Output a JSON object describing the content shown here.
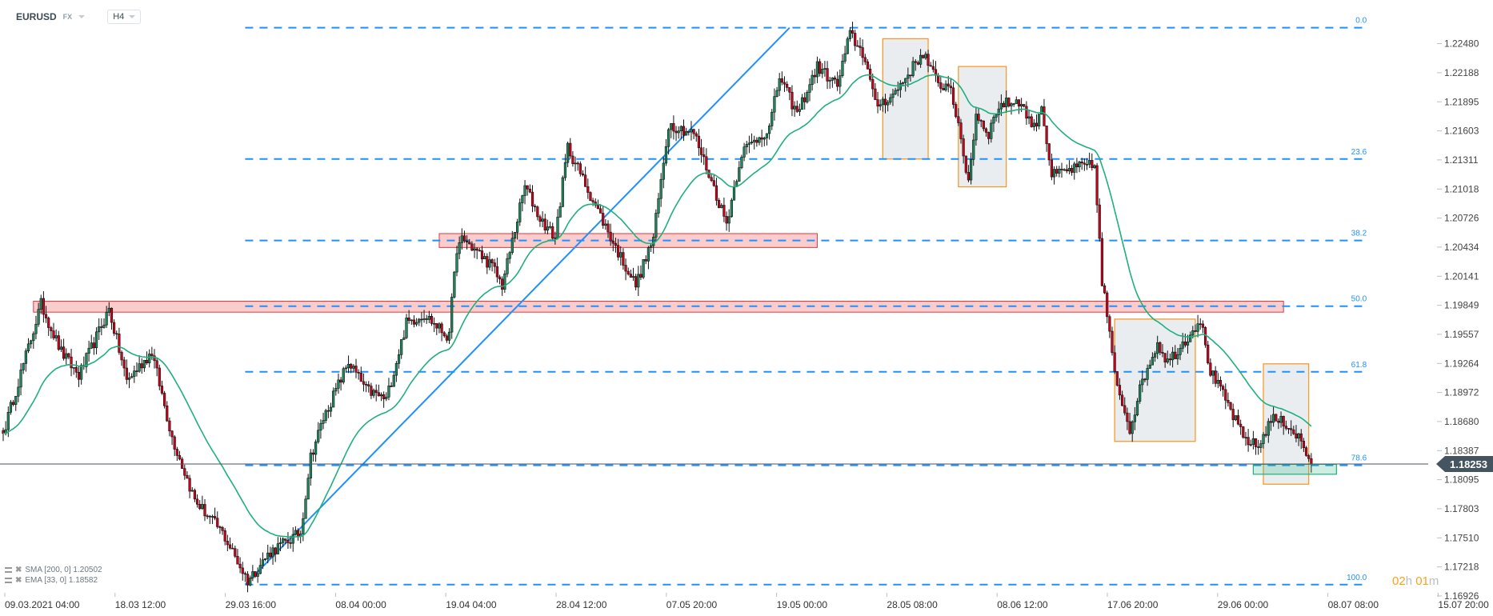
{
  "header": {
    "symbol": "EURUSD",
    "market": "FX",
    "timeframe": "H4"
  },
  "indicators": [
    {
      "label": "SMA [200,  0] 1.20502"
    },
    {
      "label": "EMA [33,  0] 1.18582"
    }
  ],
  "timer": {
    "hours": "02",
    "h": "h",
    "minutes": "01",
    "m": "m"
  },
  "colors": {
    "up": "#1b8a5e",
    "down": "#d0021b",
    "ema": "#1fb07c",
    "fib": "#1e90ff",
    "trendline": "#1e90ff",
    "zone_red": "#f5a3a3",
    "box_orange": "#f7941d",
    "zone_green": "#1fb07c",
    "last_price_bg": "#455560"
  },
  "chart_data": {
    "type": "candlestick",
    "title": "",
    "ylim": [
      1.1686,
      1.2292
    ],
    "grid": false,
    "y_ticks": [
      "1.22480",
      "1.22188",
      "1.21895",
      "1.21603",
      "1.21311",
      "1.21018",
      "1.20726",
      "1.20434",
      "1.20141",
      "1.19849",
      "1.19557",
      "1.19264",
      "1.18972",
      "1.18680",
      "1.18387",
      "1.18095",
      "1.17803",
      "1.17510",
      "1.17218",
      "1.16926"
    ],
    "x_ticks": [
      "09.03.2021  04:00",
      "18.03  12:00",
      "29.03  16:00",
      "08.04  00:00",
      "19.04  04:00",
      "28.04  12:00",
      "07.05  20:00",
      "19.05  00:00",
      "28.05  08:00",
      "08.06  12:00",
      "17.06  20:00",
      "29.06  00:00",
      "08.07  08:00",
      "15.07  20:00"
    ],
    "last_price": "1.18253",
    "ema_period": 33,
    "price_path": [
      [
        0,
        1.1856
      ],
      [
        15,
        1.1986
      ],
      [
        23,
        1.1938
      ],
      [
        30,
        1.1914
      ],
      [
        42,
        1.1981
      ],
      [
        49,
        1.1909
      ],
      [
        59,
        1.1938
      ],
      [
        67,
        1.1852
      ],
      [
        76,
        1.1789
      ],
      [
        87,
        1.1756
      ],
      [
        97,
        1.1708
      ],
      [
        106,
        1.1737
      ],
      [
        118,
        1.1756
      ],
      [
        122,
        1.1833
      ],
      [
        127,
        1.1871
      ],
      [
        137,
        1.1928
      ],
      [
        144,
        1.19
      ],
      [
        152,
        1.189
      ],
      [
        160,
        1.1967
      ],
      [
        167,
        1.1976
      ],
      [
        177,
        1.1952
      ],
      [
        179,
        1.2024
      ],
      [
        182,
        1.2053
      ],
      [
        194,
        1.2024
      ],
      [
        198,
        1.2005
      ],
      [
        207,
        1.2105
      ],
      [
        213,
        1.2072
      ],
      [
        219,
        1.2053
      ],
      [
        224,
        1.2144
      ],
      [
        232,
        1.2101
      ],
      [
        243,
        1.2043
      ],
      [
        251,
        1.2005
      ],
      [
        258,
        1.2053
      ],
      [
        264,
        1.2167
      ],
      [
        274,
        1.2158
      ],
      [
        281,
        1.211
      ],
      [
        287,
        1.2067
      ],
      [
        293,
        1.2139
      ],
      [
        304,
        1.2163
      ],
      [
        308,
        1.2215
      ],
      [
        315,
        1.2177
      ],
      [
        323,
        1.2225
      ],
      [
        331,
        1.2206
      ],
      [
        336,
        1.2258
      ],
      [
        342,
        1.2234
      ],
      [
        346,
        1.2186
      ],
      [
        353,
        1.2196
      ],
      [
        365,
        1.2239
      ],
      [
        371,
        1.2206
      ],
      [
        376,
        1.2206
      ],
      [
        380,
        1.2148
      ],
      [
        383,
        1.211
      ],
      [
        386,
        1.2177
      ],
      [
        391,
        1.2158
      ],
      [
        395,
        1.2186
      ],
      [
        403,
        1.2191
      ],
      [
        409,
        1.2163
      ],
      [
        412,
        1.2186
      ],
      [
        416,
        1.2115
      ],
      [
        422,
        1.212
      ],
      [
        429,
        1.2125
      ],
      [
        433,
        1.2125
      ],
      [
        434,
        1.2091
      ],
      [
        436,
        1.2005
      ],
      [
        437,
        1.1995
      ],
      [
        441,
        1.1914
      ],
      [
        447,
        1.1861
      ],
      [
        452,
        1.1909
      ],
      [
        458,
        1.1947
      ],
      [
        462,
        1.1928
      ],
      [
        467,
        1.1943
      ],
      [
        475,
        1.1971
      ],
      [
        479,
        1.1918
      ],
      [
        485,
        1.189
      ],
      [
        492,
        1.1852
      ],
      [
        498,
        1.1842
      ],
      [
        503,
        1.1871
      ],
      [
        509,
        1.1866
      ],
      [
        514,
        1.1852
      ],
      [
        519,
        1.18253
      ]
    ],
    "fibonacci": {
      "from_bar": 96,
      "to_bar": 541,
      "levels": [
        {
          "label": "0.0",
          "price": 1.2264
        },
        {
          "label": "23.6",
          "price": 1.2132
        },
        {
          "label": "38.2",
          "price": 1.205
        },
        {
          "label": "50.0",
          "price": 1.1984
        },
        {
          "label": "61.8",
          "price": 1.1918
        },
        {
          "label": "78.6",
          "price": 1.1824
        },
        {
          "label": "100.0",
          "price": 1.1704
        }
      ]
    },
    "trendline": {
      "bar1": 96,
      "price1": 1.1704,
      "bar2": 312,
      "price2": 1.2264
    },
    "red_zones": [
      {
        "bar1": 173,
        "bar2": 323,
        "price_top": 1.2057,
        "price_bottom": 1.2043
      },
      {
        "bar1": 12,
        "bar2": 508,
        "price_top": 1.1989,
        "price_bottom": 1.1978
      }
    ],
    "grey_boxes": [
      {
        "bar1": 349,
        "bar2": 367,
        "price_top": 1.2253,
        "price_bottom": 1.2132
      },
      {
        "bar1": 379,
        "bar2": 398,
        "price_top": 1.2225,
        "price_bottom": 1.2104
      },
      {
        "bar1": 441,
        "bar2": 473,
        "price_top": 1.1971,
        "price_bottom": 1.1848
      },
      {
        "bar1": 500,
        "bar2": 518,
        "price_top": 1.1926,
        "price_bottom": 1.1805
      }
    ],
    "green_zone": {
      "bar1": 496,
      "bar2": 529,
      "price_top": 1.1825,
      "price_bottom": 1.1815
    }
  }
}
